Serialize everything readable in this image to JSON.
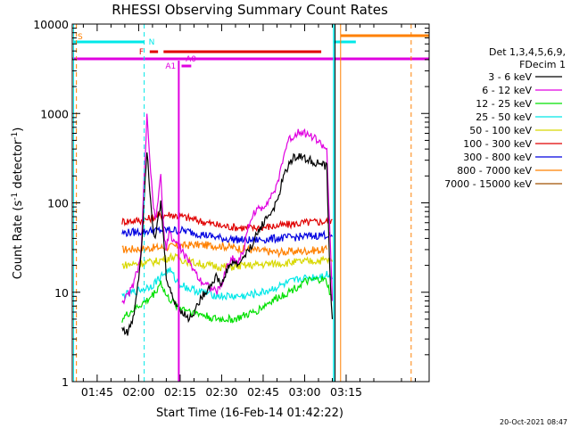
{
  "chart_data": {
    "type": "line",
    "title": "RHESSI Observing Summary Count Rates",
    "xlabel": "Start Time (16-Feb-14 01:42:22)",
    "ylabel_main": "Count Rate (s",
    "ylabel_sup1": "-1",
    "ylabel_mid": " detector",
    "ylabel_sup2": "-1",
    "ylabel_end": ")",
    "y_scale": "log",
    "ylim": [
      1,
      10000
    ],
    "xlim_minutes": [
      96,
      225
    ],
    "x_ticks": [
      "01:45",
      "02:00",
      "02:15",
      "02:30",
      "02:45",
      "03:00",
      "03:15"
    ],
    "y_ticks": [
      "1",
      "10",
      "100",
      "1000",
      "10000"
    ],
    "legend": {
      "header1": "Det 1,3,4,5,6,9,",
      "header2": "FDecim 1",
      "entries": [
        {
          "label": "3 - 6 keV",
          "color": "#000000"
        },
        {
          "label": "6 - 12 keV",
          "color": "#e000e0"
        },
        {
          "label": "12 - 25 keV",
          "color": "#00e000"
        },
        {
          "label": "25 - 50 keV",
          "color": "#00e8e8"
        },
        {
          "label": "50 - 100 keV",
          "color": "#d8d800"
        },
        {
          "label": "100 - 300 keV",
          "color": "#e00000"
        },
        {
          "label": "300 - 800 keV",
          "color": "#0000e0"
        },
        {
          "label": "800 - 7000 keV",
          "color": "#ff8000"
        },
        {
          "label": "7000 - 15000 keV",
          "color": "#a05000"
        }
      ]
    },
    "series_data": [
      {
        "color": "#ff8000",
        "points": [
          [
            114,
            30
          ],
          [
            130,
            32
          ],
          [
            140,
            34
          ],
          [
            150,
            33
          ],
          [
            160,
            30
          ],
          [
            170,
            28
          ],
          [
            180,
            29
          ],
          [
            188,
            30
          ]
        ]
      },
      {
        "color": "#e00000",
        "points": [
          [
            114,
            62
          ],
          [
            122,
            64
          ],
          [
            126,
            70
          ],
          [
            131,
            74
          ],
          [
            136,
            70
          ],
          [
            142,
            63
          ],
          [
            150,
            55
          ],
          [
            160,
            52
          ],
          [
            170,
            55
          ],
          [
            180,
            60
          ],
          [
            188,
            62
          ],
          [
            190,
            65
          ]
        ]
      },
      {
        "color": "#0000e0",
        "points": [
          [
            114,
            46
          ],
          [
            122,
            48
          ],
          [
            130,
            50
          ],
          [
            136,
            49
          ],
          [
            142,
            45
          ],
          [
            150,
            40
          ],
          [
            160,
            38
          ],
          [
            170,
            40
          ],
          [
            180,
            42
          ],
          [
            188,
            44
          ],
          [
            190,
            42
          ]
        ]
      },
      {
        "color": "#d8d800",
        "points": [
          [
            114,
            20
          ],
          [
            120,
            21
          ],
          [
            126,
            22
          ],
          [
            132,
            25
          ],
          [
            138,
            22
          ],
          [
            145,
            20
          ],
          [
            152,
            19
          ],
          [
            160,
            20
          ],
          [
            170,
            21
          ],
          [
            180,
            22
          ],
          [
            188,
            23
          ],
          [
            190,
            22
          ]
        ]
      },
      {
        "color": "#00e8e8",
        "points": [
          [
            114,
            9
          ],
          [
            118,
            10
          ],
          [
            122,
            11
          ],
          [
            125,
            12
          ],
          [
            128,
            15
          ],
          [
            131,
            18
          ],
          [
            134,
            13
          ],
          [
            138,
            11
          ],
          [
            143,
            10
          ],
          [
            150,
            9
          ],
          [
            158,
            9
          ],
          [
            165,
            10
          ],
          [
            172,
            12
          ],
          [
            178,
            14
          ],
          [
            185,
            15
          ],
          [
            188,
            16
          ],
          [
            190,
            14
          ]
        ]
      },
      {
        "color": "#00e000",
        "points": [
          [
            114,
            5
          ],
          [
            117,
            6
          ],
          [
            120,
            7
          ],
          [
            123,
            8
          ],
          [
            126,
            10
          ],
          [
            128,
            13
          ],
          [
            130,
            9
          ],
          [
            134,
            7
          ],
          [
            140,
            6
          ],
          [
            148,
            5
          ],
          [
            155,
            5
          ],
          [
            162,
            6
          ],
          [
            168,
            8
          ],
          [
            174,
            10
          ],
          [
            180,
            13
          ],
          [
            186,
            14
          ],
          [
            188,
            13
          ],
          [
            190,
            8
          ]
        ]
      },
      {
        "color": "#e000e0",
        "points": [
          [
            114,
            8
          ],
          [
            116,
            9
          ],
          [
            118,
            12
          ],
          [
            120,
            20
          ],
          [
            121,
            30
          ],
          [
            122,
            200
          ],
          [
            123,
            900
          ],
          [
            124,
            300
          ],
          [
            125,
            120
          ],
          [
            126,
            60
          ],
          [
            128,
            200
          ],
          [
            129,
            50
          ],
          [
            130,
            30
          ],
          [
            131,
            50
          ],
          [
            132,
            40
          ],
          [
            134,
            35
          ],
          [
            136,
            28
          ],
          [
            138,
            22
          ],
          [
            140,
            18
          ],
          [
            142,
            14
          ],
          [
            145,
            12
          ],
          [
            148,
            10
          ],
          [
            150,
            12
          ],
          [
            152,
            20
          ],
          [
            154,
            24
          ],
          [
            156,
            22
          ],
          [
            158,
            30
          ],
          [
            160,
            60
          ],
          [
            162,
            80
          ],
          [
            165,
            90
          ],
          [
            167,
            110
          ],
          [
            170,
            150
          ],
          [
            172,
            300
          ],
          [
            174,
            500
          ],
          [
            176,
            550
          ],
          [
            178,
            650
          ],
          [
            180,
            600
          ],
          [
            182,
            570
          ],
          [
            184,
            520
          ],
          [
            186,
            450
          ],
          [
            188,
            400
          ],
          [
            189,
            60
          ],
          [
            190,
            8
          ]
        ]
      },
      {
        "color": "#000000",
        "points": [
          [
            114,
            4
          ],
          [
            116,
            3.5
          ],
          [
            118,
            5
          ],
          [
            120,
            15
          ],
          [
            121,
            30
          ],
          [
            122,
            120
          ],
          [
            123,
            400
          ],
          [
            124,
            150
          ],
          [
            125,
            60
          ],
          [
            126,
            40
          ],
          [
            128,
            100
          ],
          [
            129,
            40
          ],
          [
            130,
            15
          ],
          [
            132,
            9
          ],
          [
            134,
            7
          ],
          [
            136,
            6
          ],
          [
            138,
            5
          ],
          [
            140,
            6
          ],
          [
            142,
            8
          ],
          [
            144,
            10
          ],
          [
            146,
            12
          ],
          [
            148,
            15
          ],
          [
            150,
            12
          ],
          [
            152,
            18
          ],
          [
            154,
            22
          ],
          [
            156,
            20
          ],
          [
            158,
            25
          ],
          [
            160,
            30
          ],
          [
            162,
            40
          ],
          [
            165,
            60
          ],
          [
            168,
            80
          ],
          [
            170,
            100
          ],
          [
            172,
            180
          ],
          [
            174,
            260
          ],
          [
            176,
            320
          ],
          [
            178,
            340
          ],
          [
            180,
            310
          ],
          [
            182,
            300
          ],
          [
            184,
            280
          ],
          [
            186,
            270
          ],
          [
            188,
            250
          ],
          [
            189,
            20
          ],
          [
            190,
            5
          ]
        ]
      }
    ],
    "annotations": [
      {
        "label": "S",
        "color": "#ff8000"
      },
      {
        "label": "N",
        "color": "#00e8e8"
      },
      {
        "label": "F",
        "color": "#e00000"
      },
      {
        "label": "A1",
        "color": "#e000e0"
      },
      {
        "label": "A0",
        "color": "#e000e0"
      }
    ]
  },
  "footer_date": "20-Oct-2021 08:47"
}
